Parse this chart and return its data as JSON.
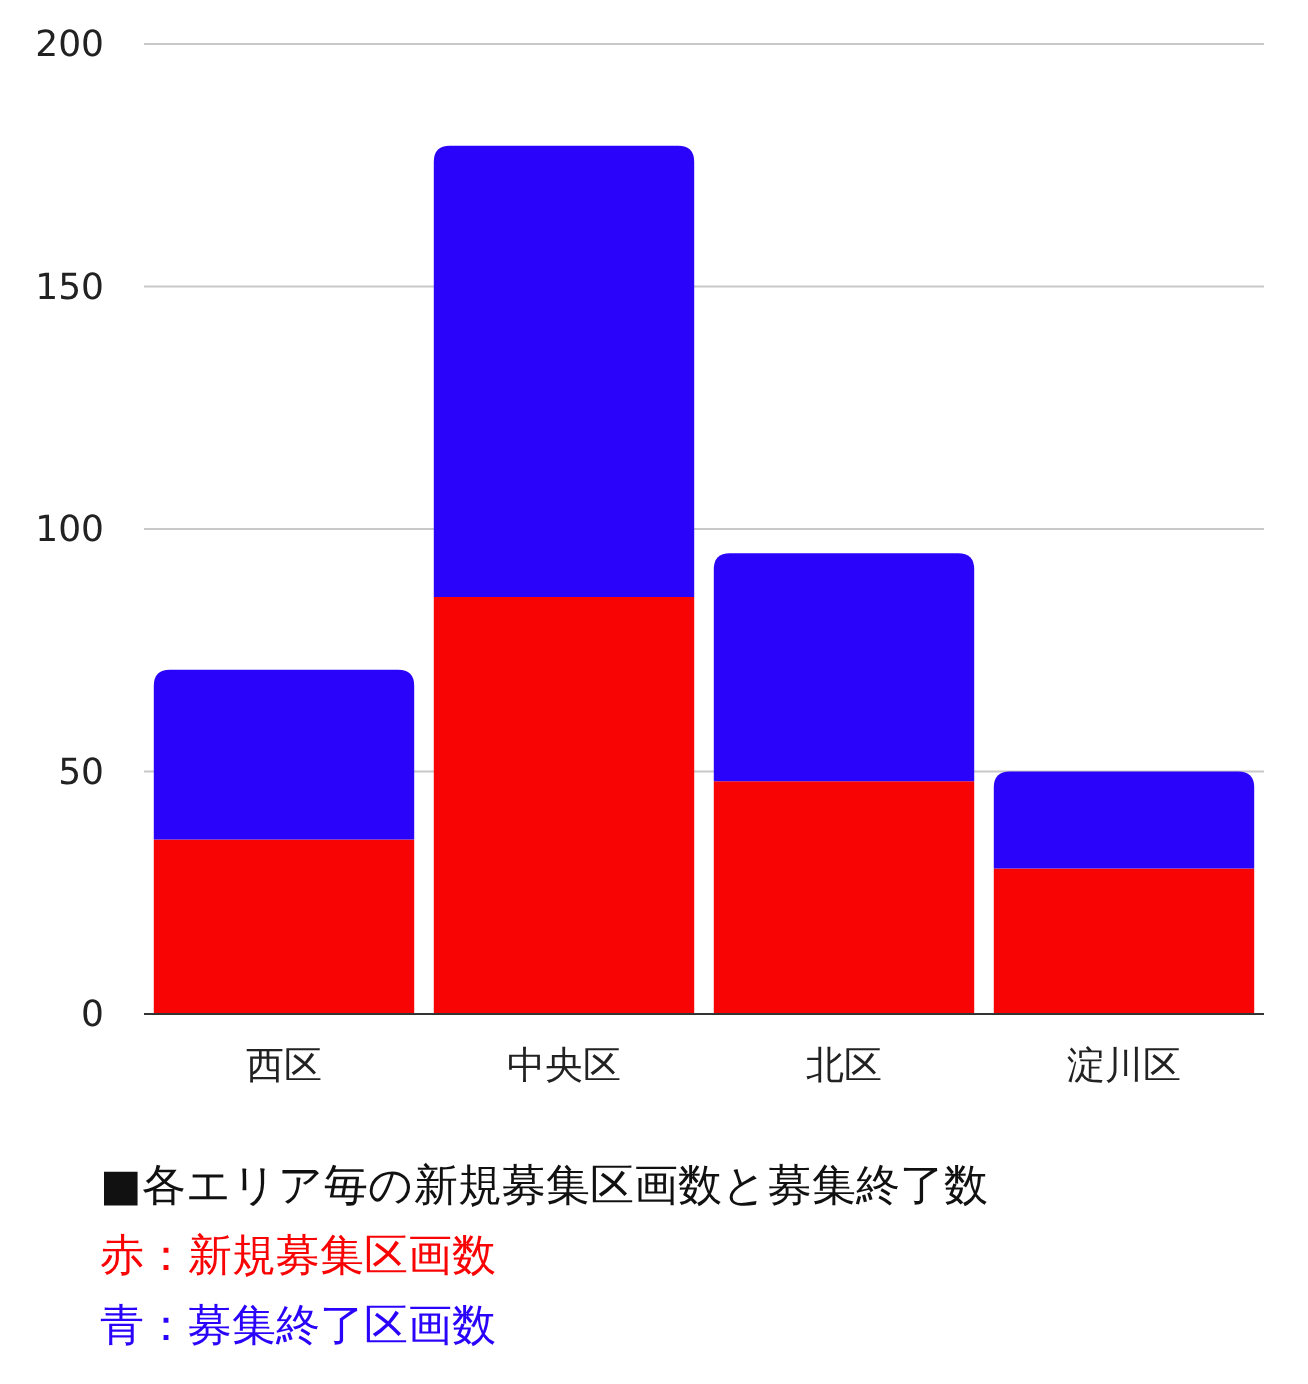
{
  "chart_data": {
    "type": "bar",
    "stacked": true,
    "categories": [
      "西区",
      "中央区",
      "北区",
      "淀川区"
    ],
    "series": [
      {
        "color": "#f80404",
        "values": [
          36,
          86,
          48,
          30
        ]
      },
      {
        "color": "#2a04fa",
        "values": [
          35,
          93,
          47,
          20
        ]
      }
    ],
    "ylim": [
      0,
      200
    ],
    "yticks": [
      0,
      50,
      100,
      150,
      200
    ],
    "grid": "y",
    "annotations": [
      "■各エリア毎の新規募集区画数と募集終了数",
      "赤：新規募集区画数",
      "青：募集終了区画数"
    ]
  }
}
